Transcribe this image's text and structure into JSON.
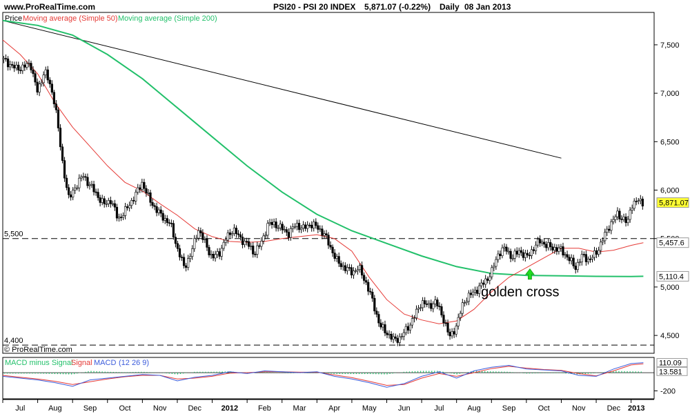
{
  "header": {
    "site": "www.ProRealTime.com",
    "title": "PSI20 - PSI 20 INDEX",
    "quote": "5,871.07 (-0.22%)",
    "period": "Daily",
    "date": "08 Jan 2013"
  },
  "credit": "© ProRealTime.com",
  "colors": {
    "ma50": "#e53935",
    "ma200": "#22c06a",
    "trendline": "#000000",
    "macd_hist": "#22c06a",
    "signal": "#e53935",
    "macd": "#3b5bdb",
    "last_bg": "#ffff33"
  },
  "chart_data": [
    {
      "type": "candlestick",
      "legend": [
        "Price",
        "Moving average (Simple 50)",
        "Moving average (Simple 200)"
      ],
      "y_ticks": [
        "7,500",
        "7,000",
        "6,500",
        "6,000",
        "5,500",
        "5,000",
        "4,500"
      ],
      "y_tick_values": [
        7500,
        7000,
        6500,
        6000,
        5500,
        5000,
        4500
      ],
      "ylim": [
        4330,
        7820
      ],
      "x_labels": [
        "Jul",
        "Aug",
        "Sep",
        "Oct",
        "Nov",
        "Dec",
        "2012",
        "Feb",
        "Mar",
        "Apr",
        "May",
        "Jun",
        "Jul",
        "Aug",
        "Sep",
        "Oct",
        "Nov",
        "Dec",
        "2013"
      ],
      "x_label_pos": [
        0.5,
        1.5,
        2.5,
        3.5,
        4.5,
        5.5,
        6.5,
        7.5,
        8.5,
        9.5,
        10.5,
        11.5,
        12.5,
        13.5,
        14.5,
        15.5,
        16.5,
        17.5,
        18.15
      ],
      "xlim": [
        0,
        18.6
      ],
      "close_path": [
        [
          0,
          7350
        ],
        [
          0.4,
          7250
        ],
        [
          0.8,
          7300
        ],
        [
          1.0,
          7000
        ],
        [
          1.2,
          7250
        ],
        [
          1.5,
          6900
        ],
        [
          1.7,
          6300
        ],
        [
          1.9,
          5900
        ],
        [
          2.1,
          6050
        ],
        [
          2.3,
          6150
        ],
        [
          2.5,
          6050
        ],
        [
          2.7,
          5950
        ],
        [
          2.9,
          5850
        ],
        [
          3.1,
          5900
        ],
        [
          3.3,
          5700
        ],
        [
          3.5,
          5780
        ],
        [
          3.8,
          5950
        ],
        [
          4.0,
          6080
        ],
        [
          4.2,
          5900
        ],
        [
          4.5,
          5750
        ],
        [
          4.8,
          5650
        ],
        [
          5.0,
          5400
        ],
        [
          5.2,
          5200
        ],
        [
          5.4,
          5350
        ],
        [
          5.6,
          5600
        ],
        [
          5.8,
          5450
        ],
        [
          6.0,
          5300
        ],
        [
          6.2,
          5350
        ],
        [
          6.4,
          5500
        ],
        [
          6.6,
          5600
        ],
        [
          6.8,
          5500
        ],
        [
          7.0,
          5450
        ],
        [
          7.2,
          5350
        ],
        [
          7.4,
          5450
        ],
        [
          7.6,
          5650
        ],
        [
          7.8,
          5650
        ],
        [
          8.0,
          5600
        ],
        [
          8.2,
          5550
        ],
        [
          8.4,
          5650
        ],
        [
          8.6,
          5600
        ],
        [
          8.8,
          5650
        ],
        [
          9.0,
          5620
        ],
        [
          9.2,
          5550
        ],
        [
          9.4,
          5400
        ],
        [
          9.6,
          5250
        ],
        [
          9.8,
          5200
        ],
        [
          10.0,
          5150
        ],
        [
          10.2,
          5200
        ],
        [
          10.4,
          5050
        ],
        [
          10.6,
          4850
        ],
        [
          10.8,
          4600
        ],
        [
          11.0,
          4530
        ],
        [
          11.2,
          4450
        ],
        [
          11.4,
          4480
        ],
        [
          11.6,
          4580
        ],
        [
          11.8,
          4700
        ],
        [
          12.0,
          4850
        ],
        [
          12.2,
          4800
        ],
        [
          12.4,
          4850
        ],
        [
          12.6,
          4700
        ],
        [
          12.8,
          4480
        ],
        [
          13.0,
          4600
        ],
        [
          13.2,
          4850
        ],
        [
          13.4,
          4920
        ],
        [
          13.6,
          4980
        ],
        [
          13.8,
          5050
        ],
        [
          14.0,
          5150
        ],
        [
          14.2,
          5350
        ],
        [
          14.4,
          5400
        ],
        [
          14.6,
          5300
        ],
        [
          14.8,
          5380
        ],
        [
          15.0,
          5300
        ],
        [
          15.2,
          5400
        ],
        [
          15.4,
          5480
        ],
        [
          15.6,
          5420
        ],
        [
          15.8,
          5400
        ],
        [
          16.0,
          5380
        ],
        [
          16.2,
          5300
        ],
        [
          16.4,
          5200
        ],
        [
          16.6,
          5320
        ],
        [
          16.8,
          5280
        ],
        [
          17.0,
          5350
        ],
        [
          17.2,
          5500
        ],
        [
          17.4,
          5650
        ],
        [
          17.6,
          5750
        ],
        [
          17.8,
          5700
        ],
        [
          17.9,
          5650
        ],
        [
          18.0,
          5850
        ],
        [
          18.2,
          5890
        ],
        [
          18.35,
          5871
        ]
      ],
      "ma50_path": [
        [
          0,
          7550
        ],
        [
          0.5,
          7400
        ],
        [
          1.0,
          7200
        ],
        [
          1.5,
          6900
        ],
        [
          2.0,
          6650
        ],
        [
          2.5,
          6450
        ],
        [
          3.0,
          6250
        ],
        [
          3.5,
          6080
        ],
        [
          4.0,
          5990
        ],
        [
          4.5,
          5860
        ],
        [
          5.0,
          5740
        ],
        [
          5.5,
          5600
        ],
        [
          6.0,
          5520
        ],
        [
          6.5,
          5470
        ],
        [
          7.0,
          5460
        ],
        [
          7.5,
          5470
        ],
        [
          8.0,
          5500
        ],
        [
          8.5,
          5520
        ],
        [
          9.0,
          5540
        ],
        [
          9.5,
          5500
        ],
        [
          10.0,
          5370
        ],
        [
          10.5,
          5100
        ],
        [
          11.0,
          4870
        ],
        [
          11.5,
          4720
        ],
        [
          12.0,
          4660
        ],
        [
          12.5,
          4620
        ],
        [
          13.0,
          4650
        ],
        [
          13.5,
          4770
        ],
        [
          14.0,
          4950
        ],
        [
          14.5,
          5100
        ],
        [
          15.0,
          5200
        ],
        [
          15.5,
          5300
        ],
        [
          16.0,
          5400
        ],
        [
          16.5,
          5400
        ],
        [
          17.0,
          5360
        ],
        [
          17.5,
          5380
        ],
        [
          18.0,
          5430
        ],
        [
          18.35,
          5457.6
        ]
      ],
      "ma200_path": [
        [
          0,
          7750
        ],
        [
          1.0,
          7700
        ],
        [
          2.0,
          7600
        ],
        [
          3.0,
          7400
        ],
        [
          4.0,
          7150
        ],
        [
          5.0,
          6850
        ],
        [
          6.0,
          6550
        ],
        [
          7.0,
          6250
        ],
        [
          8.0,
          5980
        ],
        [
          9.0,
          5750
        ],
        [
          10.0,
          5580
        ],
        [
          11.0,
          5450
        ],
        [
          12.0,
          5320
        ],
        [
          13.0,
          5210
        ],
        [
          14.0,
          5140
        ],
        [
          15.0,
          5120
        ],
        [
          16.0,
          5115
        ],
        [
          17.0,
          5110
        ],
        [
          18.0,
          5108
        ],
        [
          18.35,
          5110.4
        ]
      ],
      "trendline": [
        [
          0,
          7750
        ],
        [
          16.0,
          6330
        ]
      ],
      "horizontal_levels": [
        {
          "label": "5,500",
          "value": 5500
        },
        {
          "label": "4,400",
          "value": 4400
        }
      ],
      "last_values": [
        {
          "series": "price",
          "value": 5871.07,
          "label": "5,871.07"
        },
        {
          "series": "ma50",
          "value": 5457.6,
          "label": "5,457.6"
        },
        {
          "series": "ma200",
          "value": 5110.4,
          "label": "5,110.4"
        }
      ],
      "annotation": {
        "text": "golden cross",
        "x": 15.1,
        "y": 5130
      }
    },
    {
      "type": "macd",
      "legend": [
        "MACD minus Signal",
        "Signal",
        "MACD",
        "(12 26 9)"
      ],
      "y_ticks": [
        "-200"
      ],
      "y_tick_values": [
        -200
      ],
      "ylim": [
        -280,
        160
      ],
      "last_values": [
        {
          "series": "macd",
          "value": 110.09,
          "label": "110.09"
        },
        {
          "series": "hist",
          "value": 13.581,
          "label": "13.581"
        }
      ],
      "macd_path": [
        [
          0,
          -40
        ],
        [
          0.5,
          -60
        ],
        [
          1.0,
          -80
        ],
        [
          1.5,
          -110
        ],
        [
          2.0,
          -150
        ],
        [
          2.5,
          -80
        ],
        [
          3.0,
          -60
        ],
        [
          3.5,
          -40
        ],
        [
          4.0,
          -20
        ],
        [
          4.5,
          -30
        ],
        [
          5.0,
          -90
        ],
        [
          5.5,
          -50
        ],
        [
          6.0,
          -30
        ],
        [
          6.5,
          10
        ],
        [
          7.0,
          -10
        ],
        [
          7.5,
          20
        ],
        [
          8.0,
          10
        ],
        [
          8.5,
          0
        ],
        [
          9.0,
          10
        ],
        [
          9.5,
          -40
        ],
        [
          10.0,
          -70
        ],
        [
          10.5,
          -110
        ],
        [
          11.0,
          -160
        ],
        [
          11.5,
          -120
        ],
        [
          12.0,
          -40
        ],
        [
          12.5,
          10
        ],
        [
          13.0,
          -60
        ],
        [
          13.5,
          20
        ],
        [
          14.0,
          60
        ],
        [
          14.5,
          80
        ],
        [
          15.0,
          40
        ],
        [
          15.5,
          30
        ],
        [
          16.0,
          20
        ],
        [
          16.5,
          -30
        ],
        [
          17.0,
          -40
        ],
        [
          17.5,
          40
        ],
        [
          18.0,
          100
        ],
        [
          18.35,
          110
        ]
      ],
      "signal_path": [
        [
          0,
          -30
        ],
        [
          0.5,
          -50
        ],
        [
          1.0,
          -70
        ],
        [
          1.5,
          -95
        ],
        [
          2.0,
          -130
        ],
        [
          2.5,
          -100
        ],
        [
          3.0,
          -70
        ],
        [
          3.5,
          -45
        ],
        [
          4.0,
          -30
        ],
        [
          4.5,
          -30
        ],
        [
          5.0,
          -70
        ],
        [
          5.5,
          -60
        ],
        [
          6.0,
          -40
        ],
        [
          6.5,
          -5
        ],
        [
          7.0,
          0
        ],
        [
          7.5,
          10
        ],
        [
          8.0,
          10
        ],
        [
          8.5,
          5
        ],
        [
          9.0,
          5
        ],
        [
          9.5,
          -25
        ],
        [
          10.0,
          -55
        ],
        [
          10.5,
          -95
        ],
        [
          11.0,
          -140
        ],
        [
          11.5,
          -130
        ],
        [
          12.0,
          -60
        ],
        [
          12.5,
          -10
        ],
        [
          13.0,
          -40
        ],
        [
          13.5,
          0
        ],
        [
          14.0,
          45
        ],
        [
          14.5,
          70
        ],
        [
          15.0,
          50
        ],
        [
          15.5,
          35
        ],
        [
          16.0,
          25
        ],
        [
          16.5,
          -10
        ],
        [
          17.0,
          -35
        ],
        [
          17.5,
          20
        ],
        [
          18.0,
          85
        ],
        [
          18.35,
          98
        ]
      ]
    }
  ]
}
